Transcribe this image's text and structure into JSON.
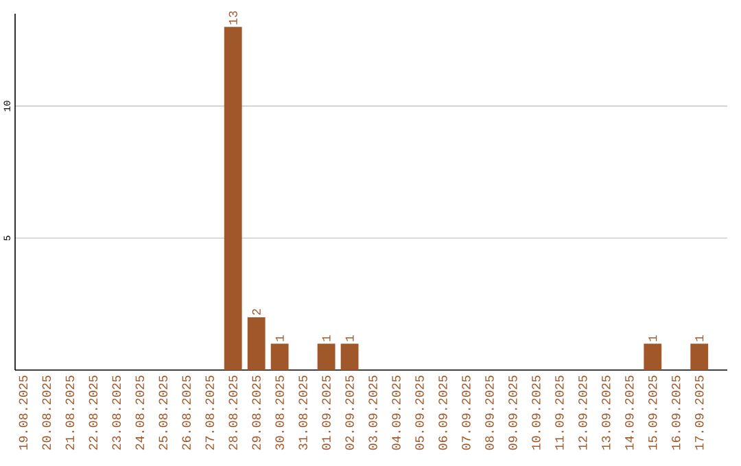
{
  "chart_data": {
    "type": "bar",
    "categories": [
      "19.08.2025",
      "20.08.2025",
      "21.08.2025",
      "22.08.2025",
      "23.08.2025",
      "24.08.2025",
      "25.08.2025",
      "26.08.2025",
      "27.08.2025",
      "28.08.2025",
      "29.08.2025",
      "30.08.2025",
      "31.08.2025",
      "01.09.2025",
      "02.09.2025",
      "03.09.2025",
      "04.09.2025",
      "05.09.2025",
      "06.09.2025",
      "07.09.2025",
      "08.09.2025",
      "09.09.2025",
      "10.09.2025",
      "11.09.2025",
      "12.09.2025",
      "13.09.2025",
      "14.09.2025",
      "15.09.2025",
      "16.09.2025",
      "17.09.2025"
    ],
    "values": [
      0,
      0,
      0,
      0,
      0,
      0,
      0,
      0,
      0,
      13,
      2,
      1,
      0,
      1,
      1,
      0,
      0,
      0,
      0,
      0,
      0,
      0,
      0,
      0,
      0,
      0,
      0,
      1,
      0,
      1
    ],
    "value_labels": [
      null,
      null,
      null,
      null,
      null,
      null,
      null,
      null,
      null,
      "13",
      "2",
      "1",
      null,
      "1",
      "1",
      null,
      null,
      null,
      null,
      null,
      null,
      null,
      null,
      null,
      null,
      null,
      null,
      "1",
      null,
      "1"
    ],
    "color": "#a0572a",
    "ylim": [
      0,
      13.5
    ],
    "yticks": [
      5,
      10
    ],
    "grid": "y"
  }
}
